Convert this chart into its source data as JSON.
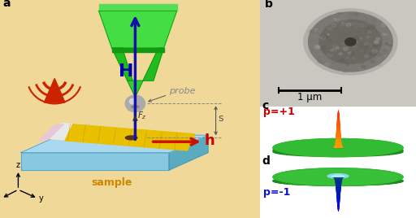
{
  "background_color": "#f0d898",
  "label_fontsize": 10,
  "label_fontweight": "bold",
  "scale_bar_text": "1 μm",
  "p_plus1_text": "p=+1",
  "p_minus1_text": "p=-1",
  "p_plus1_color": "#cc0000",
  "p_minus1_color": "#1111cc",
  "probe_text": "probe",
  "probe_color": "#888888",
  "H_text": "H",
  "H_color": "#0000aa",
  "h_text": "h",
  "h_color": "#cc0000",
  "sample_text": "sample",
  "sample_color": "#cc8800",
  "s_text": "s",
  "figsize": [
    5.12,
    2.68
  ],
  "dpi": 100,
  "chip_top_color": "#aad4e8",
  "chip_side_color": "#7ab8d0",
  "chip_front_color": "#88c4d8",
  "gold_color": "#e8c000",
  "gold_dark": "#b89000",
  "waveguide_white": "#e8e8e8",
  "pink_strip": "#e8c8d8",
  "green_body": "#22bb22",
  "green_light": "#44dd44",
  "green_dark": "#119911",
  "sphere_color": "#999999",
  "sphere_hi": "#cccccc",
  "antenna_color": "#cc2200",
  "blue_arrow": "#1111aa",
  "red_arrow": "#cc1100"
}
